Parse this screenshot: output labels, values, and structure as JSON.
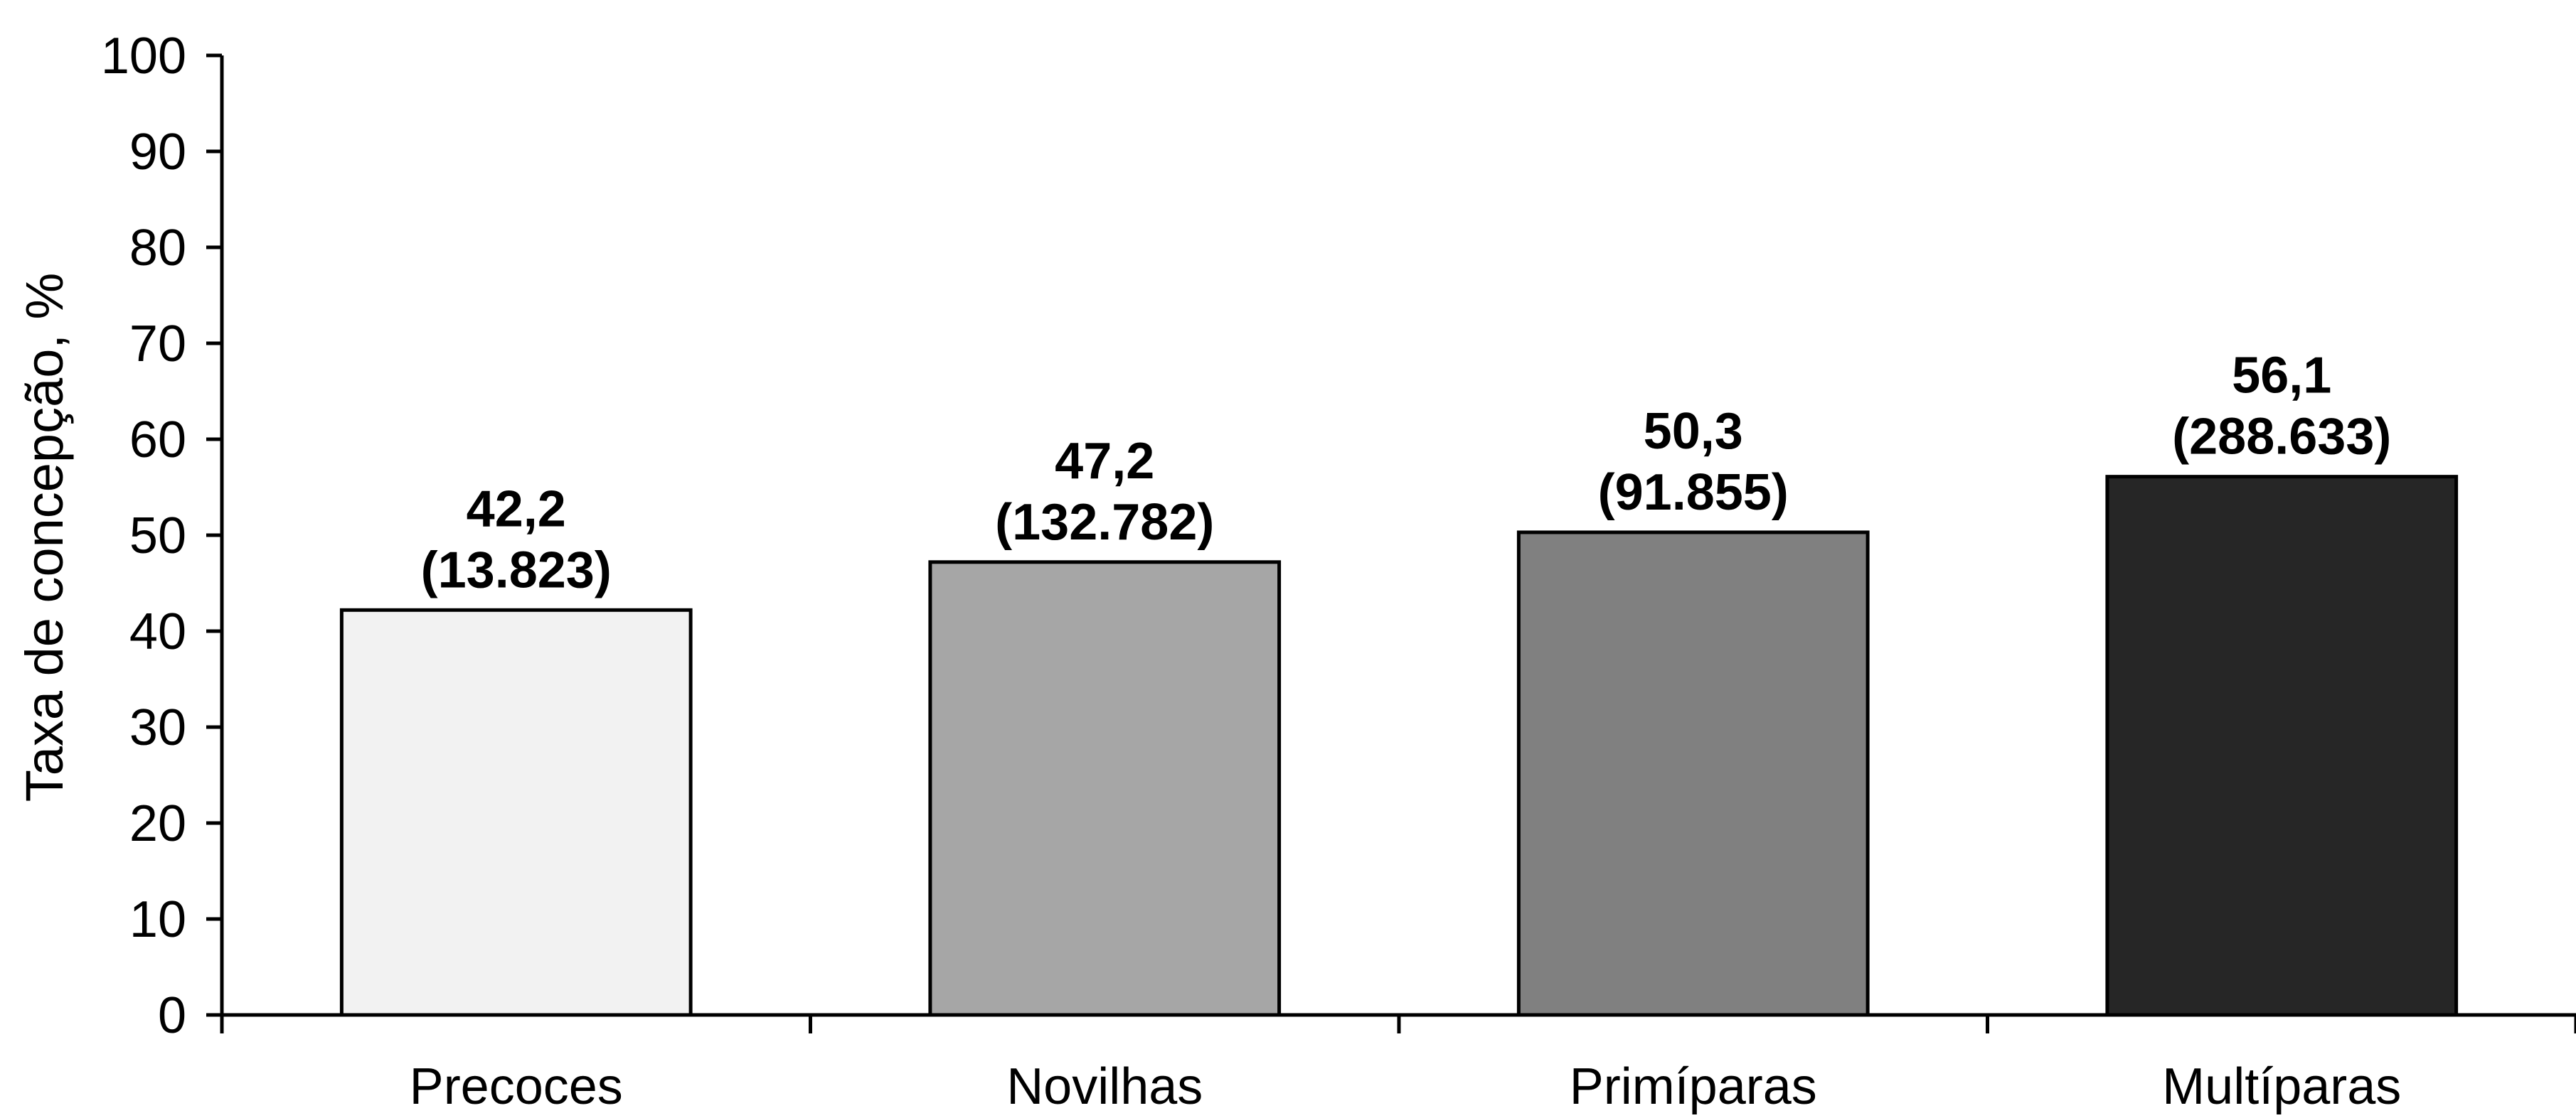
{
  "chart_data": {
    "type": "bar",
    "categories": [
      "Precoces",
      "Novilhas",
      "Primíparas",
      "Multíparas"
    ],
    "values": [
      42.2,
      47.2,
      50.3,
      56.1
    ],
    "value_labels": [
      "42,2",
      "47,2",
      "50,3",
      "56,1"
    ],
    "counts": [
      "(13.823)",
      "(132.782)",
      "(91.855)",
      "(288.633)"
    ],
    "colors": [
      "#f2f2f2",
      "#a6a6a6",
      "#808080",
      "#262626"
    ],
    "ylabel": "Taxa de concepção, %",
    "xlabel": "",
    "ylim": [
      0,
      100
    ],
    "yticks": [
      0,
      10,
      20,
      30,
      40,
      50,
      60,
      70,
      80,
      90,
      100
    ],
    "grid": false,
    "legend": "none"
  }
}
